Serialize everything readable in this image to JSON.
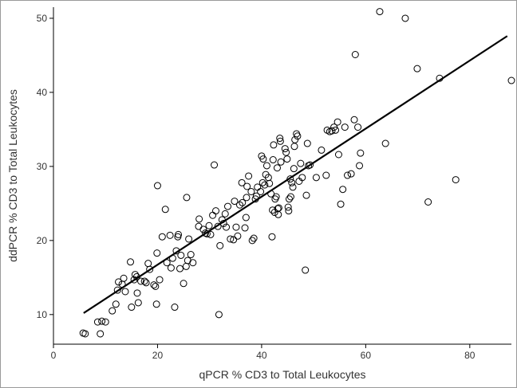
{
  "chart_data": {
    "type": "scatter",
    "title": "",
    "xlabel": "qPCR % CD3 to Total Leukocytes",
    "ylabel": "ddPCR % CD3 to Total Leukocytes",
    "xlim": [
      0,
      88
    ],
    "ylim": [
      6,
      51.5
    ],
    "x_ticks": [
      "0",
      "20",
      "40",
      "60",
      "80"
    ],
    "y_ticks": [
      "10",
      "20",
      "30",
      "40",
      "50"
    ],
    "grid": false,
    "legend": "none",
    "fit_line": {
      "x": [
        5.8,
        87.2
      ],
      "y": [
        10.2,
        47.6
      ],
      "color": "#000000"
    },
    "points": [
      [
        5.7,
        7.5
      ],
      [
        6.1,
        7.4
      ],
      [
        8.5,
        9.0
      ],
      [
        9.0,
        7.4
      ],
      [
        9.3,
        9.1
      ],
      [
        10.0,
        9.0
      ],
      [
        11.3,
        10.5
      ],
      [
        12.0,
        11.4
      ],
      [
        12.3,
        13.3
      ],
      [
        12.5,
        14.4
      ],
      [
        13.2,
        14.1
      ],
      [
        13.5,
        14.9
      ],
      [
        13.8,
        13.1
      ],
      [
        14.8,
        17.1
      ],
      [
        15.0,
        11.0
      ],
      [
        15.5,
        14.7
      ],
      [
        15.7,
        15.4
      ],
      [
        16.0,
        15.1
      ],
      [
        16.1,
        12.9
      ],
      [
        16.3,
        11.6
      ],
      [
        16.8,
        14.5
      ],
      [
        17.5,
        14.5
      ],
      [
        17.8,
        14.3
      ],
      [
        18.2,
        16.9
      ],
      [
        18.5,
        16.1
      ],
      [
        19.3,
        14.0
      ],
      [
        19.6,
        13.8
      ],
      [
        19.8,
        11.4
      ],
      [
        19.9,
        18.3
      ],
      [
        20.0,
        27.4
      ],
      [
        20.4,
        14.7
      ],
      [
        20.9,
        20.5
      ],
      [
        21.5,
        24.2
      ],
      [
        21.8,
        17.0
      ],
      [
        22.4,
        20.7
      ],
      [
        22.6,
        16.3
      ],
      [
        22.9,
        17.6
      ],
      [
        23.3,
        11.0
      ],
      [
        23.6,
        18.6
      ],
      [
        23.9,
        20.5
      ],
      [
        24.0,
        20.8
      ],
      [
        24.3,
        16.2
      ],
      [
        24.5,
        18.0
      ],
      [
        25.0,
        14.2
      ],
      [
        25.5,
        16.5
      ],
      [
        25.6,
        25.8
      ],
      [
        25.8,
        17.3
      ],
      [
        26.0,
        20.2
      ],
      [
        26.4,
        18.1
      ],
      [
        26.8,
        17.0
      ],
      [
        27.9,
        21.9
      ],
      [
        28.0,
        22.9
      ],
      [
        28.8,
        21.5
      ],
      [
        29.2,
        21.0
      ],
      [
        29.5,
        20.9
      ],
      [
        29.9,
        22.0
      ],
      [
        30.2,
        20.8
      ],
      [
        30.6,
        23.4
      ],
      [
        30.9,
        30.2
      ],
      [
        31.2,
        24.0
      ],
      [
        31.6,
        21.9
      ],
      [
        31.8,
        10.0
      ],
      [
        32.0,
        19.3
      ],
      [
        32.4,
        22.8
      ],
      [
        32.7,
        22.3
      ],
      [
        33.0,
        23.6
      ],
      [
        33.2,
        21.8
      ],
      [
        33.5,
        24.6
      ],
      [
        34.0,
        20.2
      ],
      [
        34.6,
        20.1
      ],
      [
        34.8,
        25.3
      ],
      [
        35.1,
        21.8
      ],
      [
        35.4,
        20.6
      ],
      [
        35.8,
        24.8
      ],
      [
        36.2,
        27.8
      ],
      [
        36.3,
        25.1
      ],
      [
        36.8,
        21.7
      ],
      [
        37.0,
        23.1
      ],
      [
        37.1,
        25.8
      ],
      [
        37.2,
        27.3
      ],
      [
        37.5,
        28.7
      ],
      [
        38.0,
        26.6
      ],
      [
        38.2,
        20.0
      ],
      [
        38.5,
        20.3
      ],
      [
        38.8,
        25.6
      ],
      [
        39.0,
        26.0
      ],
      [
        39.2,
        27.2
      ],
      [
        39.8,
        26.6
      ],
      [
        40.0,
        31.4
      ],
      [
        40.2,
        27.8
      ],
      [
        40.3,
        31.0
      ],
      [
        40.6,
        27.5
      ],
      [
        40.8,
        28.9
      ],
      [
        41.0,
        30.1
      ],
      [
        41.3,
        28.5
      ],
      [
        41.5,
        27.7
      ],
      [
        41.8,
        26.3
      ],
      [
        42.0,
        20.5
      ],
      [
        42.1,
        24.1
      ],
      [
        42.2,
        30.9
      ],
      [
        42.3,
        32.9
      ],
      [
        42.5,
        23.8
      ],
      [
        42.6,
        25.6
      ],
      [
        42.8,
        25.9
      ],
      [
        43.0,
        29.8
      ],
      [
        43.1,
        24.3
      ],
      [
        43.2,
        23.5
      ],
      [
        43.3,
        24.4
      ],
      [
        43.5,
        33.8
      ],
      [
        43.6,
        33.4
      ],
      [
        43.7,
        30.6
      ],
      [
        44.5,
        32.4
      ],
      [
        44.7,
        31.9
      ],
      [
        44.9,
        31.0
      ],
      [
        45.1,
        24.5
      ],
      [
        45.2,
        24.0
      ],
      [
        45.3,
        25.6
      ],
      [
        45.5,
        28.3
      ],
      [
        45.6,
        25.9
      ],
      [
        45.8,
        27.8
      ],
      [
        46.0,
        27.2
      ],
      [
        46.2,
        29.7
      ],
      [
        46.3,
        32.7
      ],
      [
        46.4,
        33.6
      ],
      [
        46.7,
        34.4
      ],
      [
        46.9,
        34.1
      ],
      [
        47.2,
        28.0
      ],
      [
        47.5,
        30.4
      ],
      [
        47.8,
        28.5
      ],
      [
        48.4,
        16.0
      ],
      [
        48.6,
        26.1
      ],
      [
        48.8,
        33.1
      ],
      [
        49.0,
        30.1
      ],
      [
        49.3,
        30.2
      ],
      [
        50.5,
        28.5
      ],
      [
        51.5,
        32.2
      ],
      [
        52.4,
        28.8
      ],
      [
        52.6,
        34.9
      ],
      [
        53.1,
        34.7
      ],
      [
        53.5,
        34.8
      ],
      [
        53.9,
        35.3
      ],
      [
        54.2,
        34.9
      ],
      [
        54.6,
        36.0
      ],
      [
        54.8,
        31.6
      ],
      [
        55.2,
        24.9
      ],
      [
        55.6,
        26.9
      ],
      [
        56.0,
        35.3
      ],
      [
        56.5,
        28.8
      ],
      [
        57.2,
        29.0
      ],
      [
        57.8,
        36.3
      ],
      [
        58.0,
        45.1
      ],
      [
        58.5,
        35.3
      ],
      [
        58.8,
        30.1
      ],
      [
        59.0,
        31.8
      ],
      [
        62.7,
        50.9
      ],
      [
        63.8,
        33.1
      ],
      [
        67.6,
        50.0
      ],
      [
        69.9,
        43.2
      ],
      [
        72.0,
        25.2
      ],
      [
        74.2,
        41.9
      ],
      [
        77.3,
        28.2
      ],
      [
        88.0,
        41.6
      ]
    ]
  }
}
